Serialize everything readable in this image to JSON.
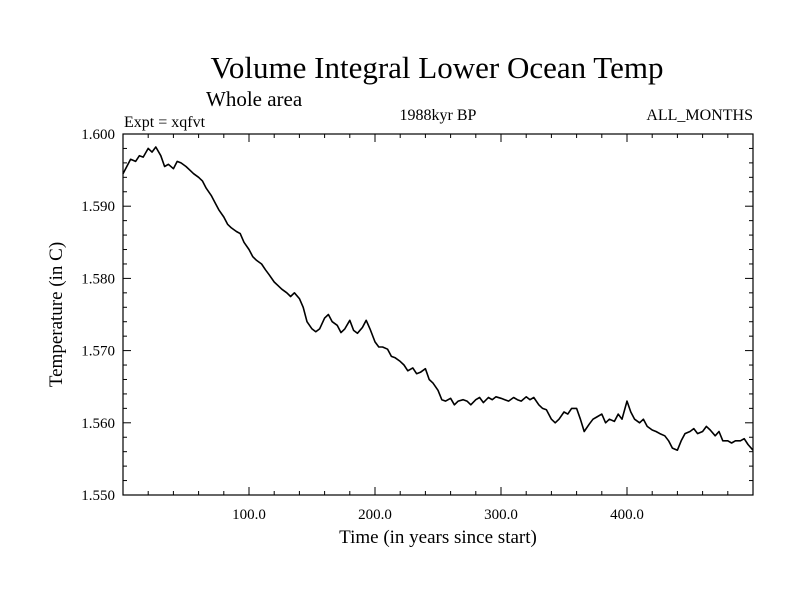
{
  "chart_data": {
    "type": "line",
    "title": "Volume Integral Lower Ocean Temp",
    "subtitle": "Whole area",
    "annotations": {
      "experiment": "Expt = xqfvt",
      "period": "1988kyr BP",
      "months": "ALL_MONTHS"
    },
    "xlabel": "Time (in years since start)",
    "ylabel": "Temperature (in C)",
    "xlim": [
      0,
      500
    ],
    "ylim": [
      1.55,
      1.6
    ],
    "x_ticks": [
      100,
      200,
      300,
      400
    ],
    "x_tick_labels": [
      "100.0",
      "200.0",
      "300.0",
      "400.0"
    ],
    "y_ticks": [
      1.55,
      1.56,
      1.57,
      1.58,
      1.59,
      1.6
    ],
    "y_tick_labels": [
      "1.550",
      "1.560",
      "1.570",
      "1.580",
      "1.590",
      "1.600"
    ],
    "grid": false,
    "line_color": "#000000",
    "series": [
      {
        "name": "Temperature",
        "x": [
          0,
          3,
          6,
          10,
          13,
          16,
          20,
          23,
          26,
          30,
          33,
          36,
          40,
          43,
          46,
          50,
          53,
          56,
          60,
          63,
          66,
          70,
          73,
          76,
          80,
          83,
          86,
          90,
          93,
          96,
          100,
          103,
          106,
          110,
          113,
          116,
          120,
          123,
          126,
          130,
          133,
          136,
          140,
          143,
          146,
          150,
          153,
          156,
          160,
          163,
          166,
          170,
          173,
          176,
          180,
          183,
          186,
          190,
          193,
          196,
          200,
          203,
          206,
          210,
          213,
          216,
          220,
          223,
          226,
          230,
          233,
          236,
          240,
          243,
          246,
          250,
          253,
          256,
          260,
          263,
          266,
          270,
          273,
          276,
          280,
          283,
          286,
          290,
          293,
          296,
          300,
          303,
          306,
          310,
          313,
          316,
          320,
          323,
          326,
          330,
          333,
          336,
          340,
          343,
          346,
          350,
          353,
          356,
          360,
          363,
          366,
          370,
          373,
          376,
          380,
          383,
          386,
          390,
          393,
          396,
          400,
          403,
          406,
          410,
          413,
          416,
          420,
          423,
          426,
          430,
          433,
          436,
          440,
          443,
          446,
          450,
          453,
          456,
          460,
          463,
          466,
          470,
          473,
          476,
          480,
          483,
          486,
          490,
          493,
          496,
          500
        ],
        "values": [
          1.5945,
          1.5955,
          1.5965,
          1.5962,
          1.597,
          1.5968,
          1.598,
          1.5975,
          1.5982,
          1.597,
          1.5955,
          1.5958,
          1.5952,
          1.5962,
          1.596,
          1.5955,
          1.595,
          1.5945,
          1.594,
          1.5935,
          1.5925,
          1.5915,
          1.5905,
          1.5895,
          1.5885,
          1.5875,
          1.587,
          1.5865,
          1.5862,
          1.585,
          1.584,
          1.583,
          1.5825,
          1.582,
          1.5812,
          1.5805,
          1.5795,
          1.579,
          1.5785,
          1.578,
          1.5775,
          1.578,
          1.5772,
          1.576,
          1.574,
          1.573,
          1.5726,
          1.573,
          1.5745,
          1.575,
          1.574,
          1.5735,
          1.5725,
          1.573,
          1.5742,
          1.5728,
          1.5724,
          1.5732,
          1.5742,
          1.573,
          1.5712,
          1.5705,
          1.5705,
          1.5702,
          1.5692,
          1.569,
          1.5685,
          1.568,
          1.5672,
          1.5676,
          1.5668,
          1.567,
          1.5675,
          1.566,
          1.5655,
          1.5645,
          1.5632,
          1.563,
          1.5634,
          1.5625,
          1.563,
          1.5632,
          1.563,
          1.5625,
          1.5632,
          1.5635,
          1.5628,
          1.5635,
          1.5632,
          1.5636,
          1.5634,
          1.5632,
          1.563,
          1.5635,
          1.5632,
          1.563,
          1.5636,
          1.5632,
          1.5635,
          1.5625,
          1.562,
          1.5618,
          1.5605,
          1.56,
          1.5605,
          1.5615,
          1.5612,
          1.562,
          1.562,
          1.5605,
          1.5588,
          1.5598,
          1.5605,
          1.5608,
          1.5612,
          1.56,
          1.5605,
          1.5602,
          1.5612,
          1.5605,
          1.563,
          1.5615,
          1.5605,
          1.56,
          1.5605,
          1.5595,
          1.559,
          1.5588,
          1.5585,
          1.5582,
          1.5575,
          1.5565,
          1.5562,
          1.5575,
          1.5585,
          1.5588,
          1.5592,
          1.5585,
          1.5588,
          1.5595,
          1.559,
          1.5582,
          1.5588,
          1.5575,
          1.5575,
          1.5572,
          1.5575,
          1.5575,
          1.5578,
          1.557,
          1.5562
        ]
      }
    ]
  }
}
